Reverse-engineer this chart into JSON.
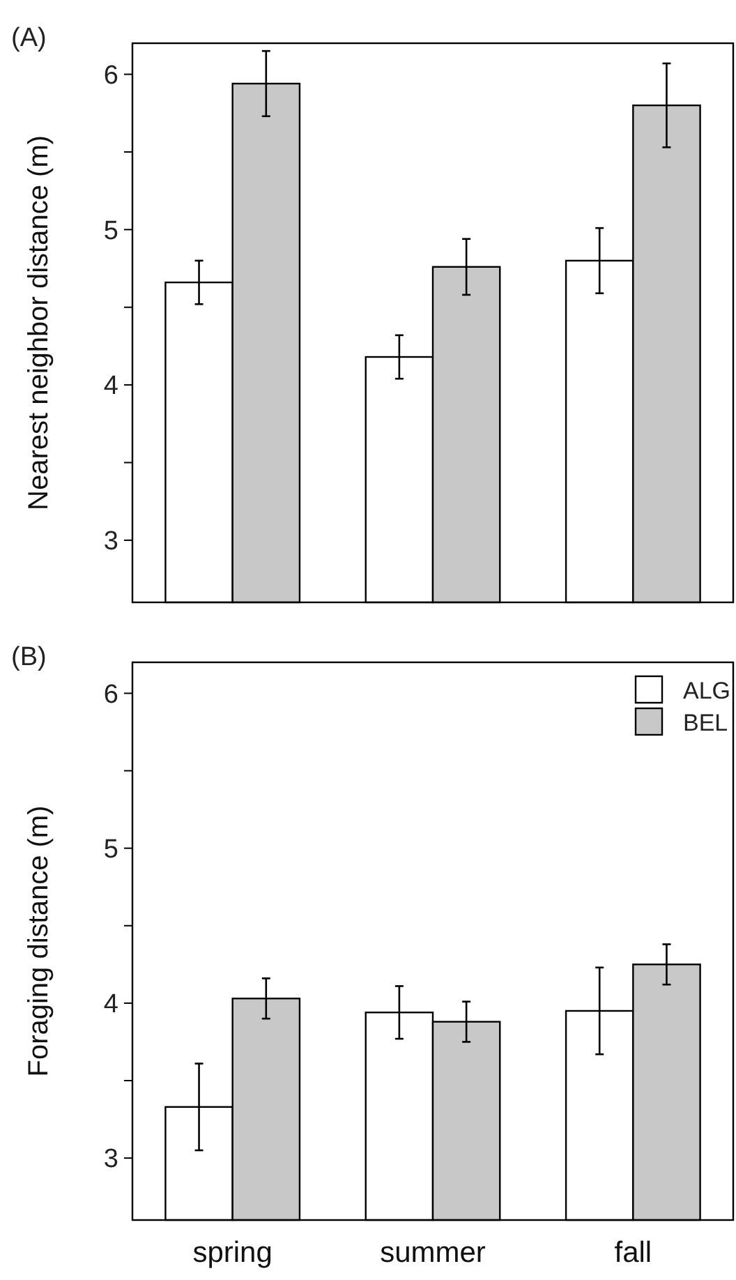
{
  "chart_data": [
    {
      "type": "bar",
      "title": "(A)",
      "ylabel": "Nearest neighbor distance (m)",
      "categories": [
        null,
        null,
        null
      ],
      "legend": false,
      "series": [
        {
          "color": "#ffffff",
          "values": [
            4.66,
            4.18,
            4.8
          ],
          "errors": [
            0.14,
            0.14,
            0.21
          ]
        },
        {
          "color": "#c8c8c8",
          "values": [
            5.94,
            4.76,
            5.8
          ],
          "errors": [
            0.21,
            0.18,
            0.27
          ]
        }
      ],
      "ylim": [
        2.6,
        6.2
      ],
      "yticks": [
        3,
        {
          "value": 3.5,
          "label": null
        },
        4,
        {
          "value": 4.5,
          "label": null
        },
        5,
        {
          "value": 5.5,
          "label": null
        },
        6
      ]
    },
    {
      "type": "bar",
      "title": "(B)",
      "ylabel": "Foraging distance (m)",
      "categories": [
        "spring",
        "summer",
        "fall"
      ],
      "legend": "top right",
      "series": [
        {
          "name": "ALG",
          "color": "#ffffff",
          "values": [
            3.33,
            3.94,
            3.95
          ],
          "errors": [
            0.28,
            0.17,
            0.28
          ]
        },
        {
          "name": "BEL",
          "color": "#c8c8c8",
          "values": [
            4.03,
            3.88,
            4.25
          ],
          "errors": [
            0.13,
            0.13,
            0.13
          ]
        }
      ],
      "ylim": [
        2.6,
        6.2
      ],
      "yticks": [
        3,
        {
          "value": 3.5,
          "label": null
        },
        4,
        {
          "value": 4.5,
          "label": null
        },
        5,
        {
          "value": 5.5,
          "label": null
        },
        6
      ]
    }
  ]
}
